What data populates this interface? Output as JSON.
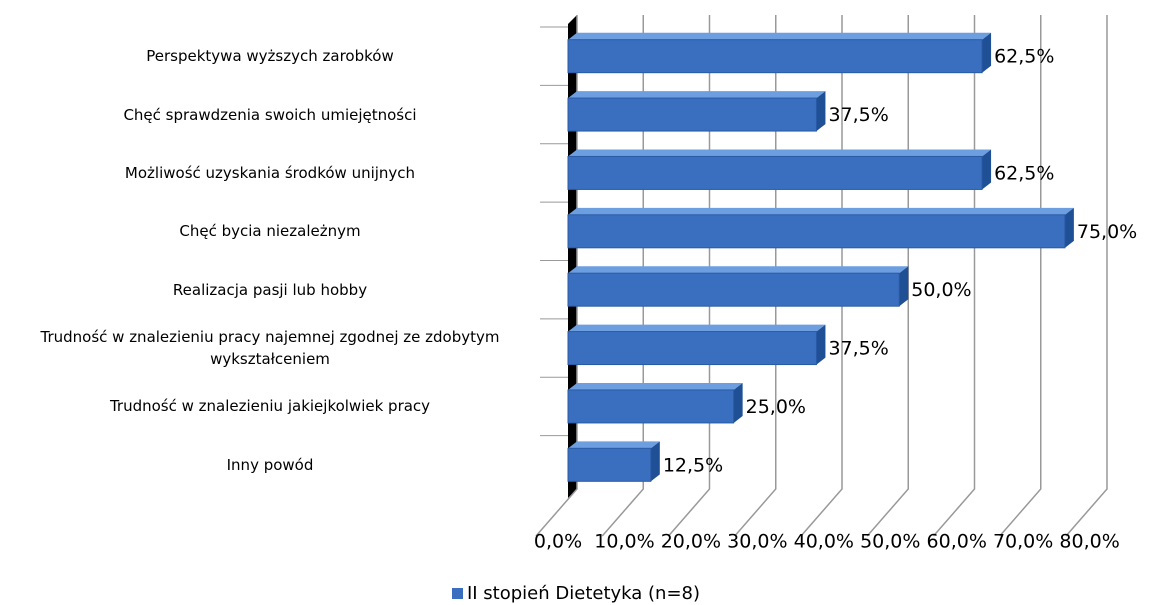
{
  "chart_data": {
    "type": "bar3d_horizontal",
    "categories": [
      "Perspektywa wyższych  zarobków",
      "Chęć sprawdzenia swoich umiejętności",
      "Możliwość uzyskania środków unijnych",
      "Chęć bycia niezależnym",
      "Realizacja pasji lub hobby",
      "Trudność w znalezieniu pracy najemnej zgodnej ze zdobytym wykształceniem",
      "Trudność w znalezieniu jakiejkolwiek pracy",
      "Inny powód"
    ],
    "series": [
      {
        "name": "II stopień Dietetyka (n=8)",
        "color": "#3a6fc0",
        "values": [
          62.5,
          37.5,
          62.5,
          75,
          50,
          37.5,
          25,
          12.5
        ],
        "value_labels": [
          "62,5%",
          "37,5%",
          "62,5%",
          "75,0%",
          "50,0%",
          "37,5%",
          "25,0%",
          "12,5%"
        ]
      }
    ],
    "xlim": [
      0,
      80
    ],
    "xticks": [
      {
        "value": 0,
        "label": "0,0%"
      },
      {
        "value": 10,
        "label": "10,0%"
      },
      {
        "value": 20,
        "label": "20,0%"
      },
      {
        "value": 30,
        "label": "30,0%"
      },
      {
        "value": 40,
        "label": "40,0%"
      },
      {
        "value": 50,
        "label": "50,0%"
      },
      {
        "value": 60,
        "label": "60,0%"
      },
      {
        "value": 70,
        "label": "70,0%"
      },
      {
        "value": 80,
        "label": "80,0%"
      }
    ],
    "grid": true,
    "legend": "bottom"
  }
}
